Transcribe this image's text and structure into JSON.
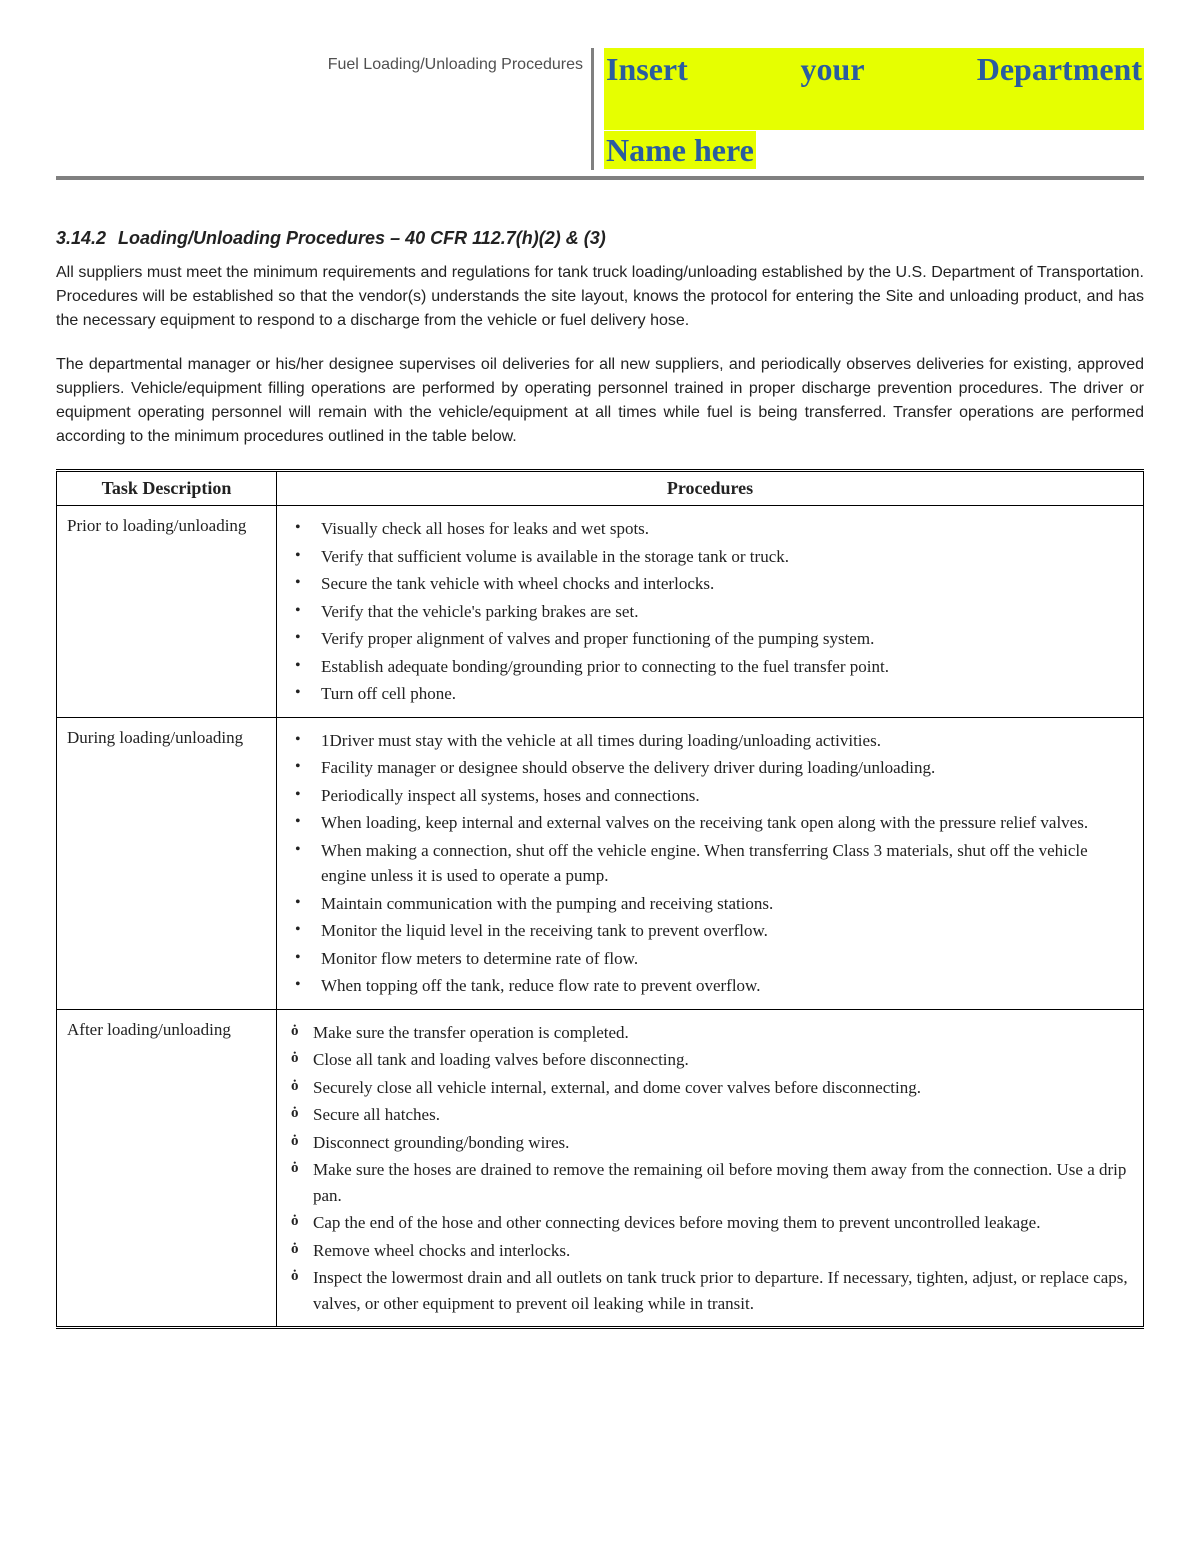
{
  "header": {
    "left_text": "Fuel Loading/Unloading Procedures",
    "dept_line1": "Insert your Department",
    "dept_line2": "Name here"
  },
  "colors": {
    "highlight_bg": "#e6ff00",
    "highlight_text": "#2a5ca0",
    "rule": "#808080",
    "body_text": "#222222"
  },
  "section": {
    "number": "3.14.2",
    "title": "Loading/Unloading Procedures – 40 CFR 112.7(h)(2) & (3)"
  },
  "paragraphs": [
    "All suppliers must meet the minimum requirements and regulations for tank truck loading/unloading established by the U.S. Department of Transportation. Procedures will be established so that the vendor(s) understands the site layout, knows the protocol for entering the Site and unloading product, and has the necessary equipment to respond to a discharge from the vehicle or fuel delivery hose.",
    "The departmental manager or his/her designee supervises oil deliveries for all new suppliers, and periodically observes deliveries for existing, approved suppliers. Vehicle/equipment filling operations are performed by operating personnel trained in proper discharge prevention procedures. The driver or equipment operating personnel will remain with the vehicle/equipment at all times while fuel is being transferred. Transfer operations are performed according to the minimum procedures outlined in the table below."
  ],
  "table": {
    "columns": [
      "Task Description",
      "Procedures"
    ],
    "rows": [
      {
        "task": "Prior to loading/unloading",
        "bullet_style": "dot",
        "items": [
          "Visually check all hoses for leaks and wet spots.",
          "Verify that sufficient volume is available in the storage tank or truck.",
          "Secure the tank vehicle with wheel chocks and interlocks.",
          "Verify that the vehicle's parking brakes are set.",
          "Verify proper alignment of valves and proper functioning of the pumping system.",
          "Establish adequate bonding/grounding prior to connecting to the fuel transfer point.",
          "Turn off cell phone."
        ]
      },
      {
        "task": "During loading/unloading",
        "bullet_style": "dot",
        "items": [
          "1Driver must stay with the vehicle at all times during loading/unloading activities.",
          "Facility manager or designee should observe the delivery driver during loading/unloading.",
          "Periodically inspect all systems, hoses and connections.",
          "When loading, keep internal and external valves on the receiving tank open along with the pressure relief valves.",
          "When making a connection, shut off the vehicle engine. When transferring Class 3 materials, shut off the vehicle engine unless it is used to operate a pump.",
          "Maintain communication with the pumping and receiving stations.",
          "Monitor the liquid level in the receiving tank to prevent overflow.",
          "Monitor flow meters to determine rate of flow.",
          "When topping off the tank, reduce flow rate to prevent overflow."
        ]
      },
      {
        "task": "After loading/unloading",
        "bullet_style": "special",
        "items": [
          "Make sure the transfer operation is completed.",
          "Close all tank and loading valves before disconnecting.",
          "Securely close all vehicle internal, external, and dome cover valves before disconnecting.",
          "Secure all hatches.",
          "Disconnect grounding/bonding wires.",
          "Make sure the hoses are drained to remove the remaining oil before moving them away from the connection. Use a drip pan.",
          "Cap the end of the hose and other connecting devices before moving them to prevent uncontrolled leakage.",
          "Remove wheel chocks and interlocks.",
          "Inspect the lowermost drain and all outlets on tank truck prior to departure. If necessary, tighten, adjust, or replace caps, valves, or other equipment to prevent oil leaking while in transit."
        ]
      }
    ]
  }
}
